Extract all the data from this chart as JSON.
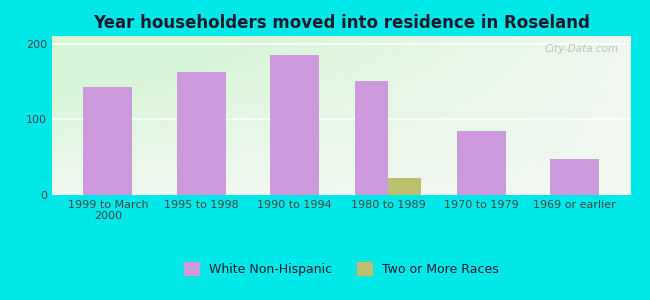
{
  "title": "Year householders moved into residence in Roseland",
  "categories": [
    "1999 to March\n2000",
    "1995 to 1998",
    "1990 to 1994",
    "1980 to 1989",
    "1970 to 1979",
    "1969 or earlier"
  ],
  "white_non_hispanic": [
    143,
    163,
    185,
    150,
    85,
    47
  ],
  "two_or_more_races": [
    0,
    0,
    0,
    22,
    0,
    0
  ],
  "bar_color_white": "#cc99dd",
  "bar_color_two": "#bbbf6e",
  "ylim": [
    0,
    210
  ],
  "yticks": [
    0,
    100,
    200
  ],
  "background_outer": "#00e8e8",
  "background_inner": "#eaf5ea",
  "legend_label_white": "White Non-Hispanic",
  "legend_label_two": "Two or More Races",
  "title_fontsize": 12,
  "tick_fontsize": 8,
  "legend_fontsize": 9,
  "bar_width": 0.35,
  "watermark": "City-Data.com"
}
